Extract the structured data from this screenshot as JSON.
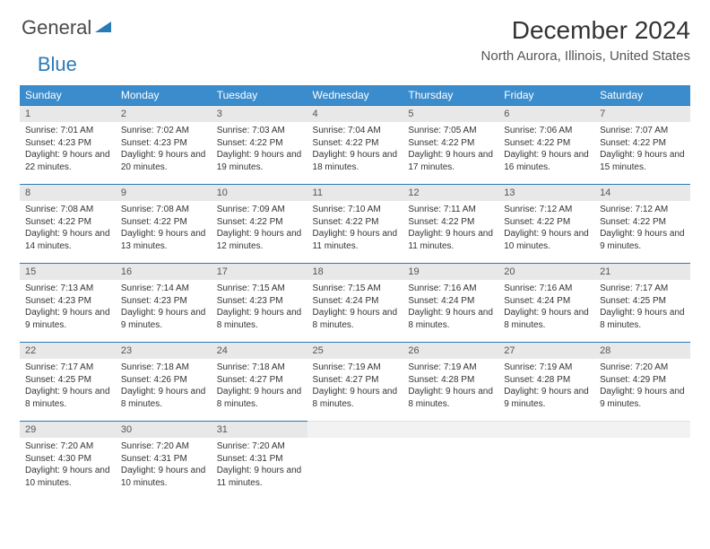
{
  "logo": {
    "part1": "General",
    "part2": "Blue"
  },
  "title": "December 2024",
  "location": "North Aurora, Illinois, United States",
  "colors": {
    "header_bg": "#3b8ccc",
    "header_text": "#ffffff",
    "daynum_bg": "#e8e8e8",
    "daynum_border": "#2a7ab8",
    "text": "#333333",
    "logo_gray": "#4a4a4a",
    "logo_blue": "#2a7ab8"
  },
  "weekdays": [
    "Sunday",
    "Monday",
    "Tuesday",
    "Wednesday",
    "Thursday",
    "Friday",
    "Saturday"
  ],
  "days": [
    {
      "n": "1",
      "sr": "7:01 AM",
      "ss": "4:23 PM",
      "dl": "9 hours and 22 minutes."
    },
    {
      "n": "2",
      "sr": "7:02 AM",
      "ss": "4:23 PM",
      "dl": "9 hours and 20 minutes."
    },
    {
      "n": "3",
      "sr": "7:03 AM",
      "ss": "4:22 PM",
      "dl": "9 hours and 19 minutes."
    },
    {
      "n": "4",
      "sr": "7:04 AM",
      "ss": "4:22 PM",
      "dl": "9 hours and 18 minutes."
    },
    {
      "n": "5",
      "sr": "7:05 AM",
      "ss": "4:22 PM",
      "dl": "9 hours and 17 minutes."
    },
    {
      "n": "6",
      "sr": "7:06 AM",
      "ss": "4:22 PM",
      "dl": "9 hours and 16 minutes."
    },
    {
      "n": "7",
      "sr": "7:07 AM",
      "ss": "4:22 PM",
      "dl": "9 hours and 15 minutes."
    },
    {
      "n": "8",
      "sr": "7:08 AM",
      "ss": "4:22 PM",
      "dl": "9 hours and 14 minutes."
    },
    {
      "n": "9",
      "sr": "7:08 AM",
      "ss": "4:22 PM",
      "dl": "9 hours and 13 minutes."
    },
    {
      "n": "10",
      "sr": "7:09 AM",
      "ss": "4:22 PM",
      "dl": "9 hours and 12 minutes."
    },
    {
      "n": "11",
      "sr": "7:10 AM",
      "ss": "4:22 PM",
      "dl": "9 hours and 11 minutes."
    },
    {
      "n": "12",
      "sr": "7:11 AM",
      "ss": "4:22 PM",
      "dl": "9 hours and 11 minutes."
    },
    {
      "n": "13",
      "sr": "7:12 AM",
      "ss": "4:22 PM",
      "dl": "9 hours and 10 minutes."
    },
    {
      "n": "14",
      "sr": "7:12 AM",
      "ss": "4:22 PM",
      "dl": "9 hours and 9 minutes."
    },
    {
      "n": "15",
      "sr": "7:13 AM",
      "ss": "4:23 PM",
      "dl": "9 hours and 9 minutes."
    },
    {
      "n": "16",
      "sr": "7:14 AM",
      "ss": "4:23 PM",
      "dl": "9 hours and 9 minutes."
    },
    {
      "n": "17",
      "sr": "7:15 AM",
      "ss": "4:23 PM",
      "dl": "9 hours and 8 minutes."
    },
    {
      "n": "18",
      "sr": "7:15 AM",
      "ss": "4:24 PM",
      "dl": "9 hours and 8 minutes."
    },
    {
      "n": "19",
      "sr": "7:16 AM",
      "ss": "4:24 PM",
      "dl": "9 hours and 8 minutes."
    },
    {
      "n": "20",
      "sr": "7:16 AM",
      "ss": "4:24 PM",
      "dl": "9 hours and 8 minutes."
    },
    {
      "n": "21",
      "sr": "7:17 AM",
      "ss": "4:25 PM",
      "dl": "9 hours and 8 minutes."
    },
    {
      "n": "22",
      "sr": "7:17 AM",
      "ss": "4:25 PM",
      "dl": "9 hours and 8 minutes."
    },
    {
      "n": "23",
      "sr": "7:18 AM",
      "ss": "4:26 PM",
      "dl": "9 hours and 8 minutes."
    },
    {
      "n": "24",
      "sr": "7:18 AM",
      "ss": "4:27 PM",
      "dl": "9 hours and 8 minutes."
    },
    {
      "n": "25",
      "sr": "7:19 AM",
      "ss": "4:27 PM",
      "dl": "9 hours and 8 minutes."
    },
    {
      "n": "26",
      "sr": "7:19 AM",
      "ss": "4:28 PM",
      "dl": "9 hours and 8 minutes."
    },
    {
      "n": "27",
      "sr": "7:19 AM",
      "ss": "4:28 PM",
      "dl": "9 hours and 9 minutes."
    },
    {
      "n": "28",
      "sr": "7:20 AM",
      "ss": "4:29 PM",
      "dl": "9 hours and 9 minutes."
    },
    {
      "n": "29",
      "sr": "7:20 AM",
      "ss": "4:30 PM",
      "dl": "9 hours and 10 minutes."
    },
    {
      "n": "30",
      "sr": "7:20 AM",
      "ss": "4:31 PM",
      "dl": "9 hours and 10 minutes."
    },
    {
      "n": "31",
      "sr": "7:20 AM",
      "ss": "4:31 PM",
      "dl": "9 hours and 11 minutes."
    }
  ],
  "labels": {
    "sunrise": "Sunrise:",
    "sunset": "Sunset:",
    "daylight": "Daylight:"
  }
}
